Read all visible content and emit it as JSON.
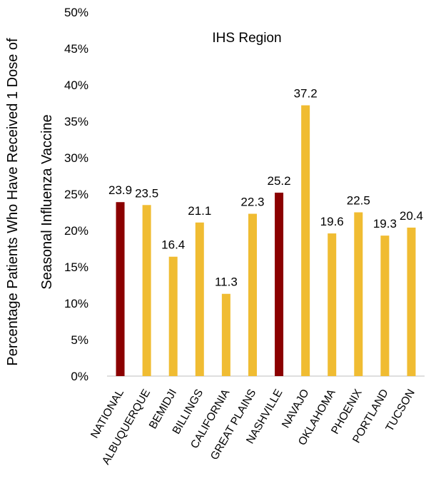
{
  "chart_data": {
    "type": "bar",
    "title": "IHS Region",
    "ylabel_lines": [
      "Percentage Patients Who Have Received 1 Dose of",
      "Seasonal Influenza Vaccine"
    ],
    "xlabel": "",
    "ylim": [
      0,
      50
    ],
    "yticks": [
      0,
      5,
      10,
      15,
      20,
      25,
      30,
      35,
      40,
      45,
      50
    ],
    "ytick_labels": [
      "0%",
      "5%",
      "10%",
      "15%",
      "20%",
      "25%",
      "30%",
      "35%",
      "40%",
      "45%",
      "50%"
    ],
    "grid": false,
    "categories": [
      "NATIONAL",
      "ALBUQUERQUE",
      "BEMIDJI",
      "BILLINGS",
      "CALIFORNIA",
      "GREAT PLAINS",
      "NASHVILLE",
      "NAVAJO",
      "OKLAHOMA",
      "PHOENIX",
      "PORTLAND",
      "TUCSON"
    ],
    "values": [
      23.9,
      23.5,
      16.4,
      21.1,
      11.3,
      22.3,
      25.2,
      37.2,
      19.6,
      22.5,
      19.3,
      20.4
    ],
    "data_labels": [
      "23.9",
      "23.5",
      "16.4",
      "21.1",
      "11.3",
      "22.3",
      "25.2",
      "37.2",
      "19.6",
      "22.5",
      "19.3",
      "20.4"
    ],
    "bar_colors": [
      "#8B0000",
      "#F0BC32",
      "#F0BC32",
      "#F0BC32",
      "#F0BC32",
      "#F0BC32",
      "#8B0000",
      "#F0BC32",
      "#F0BC32",
      "#F0BC32",
      "#F0BC32",
      "#F0BC32"
    ],
    "axis_color": "#BFBFBF"
  }
}
